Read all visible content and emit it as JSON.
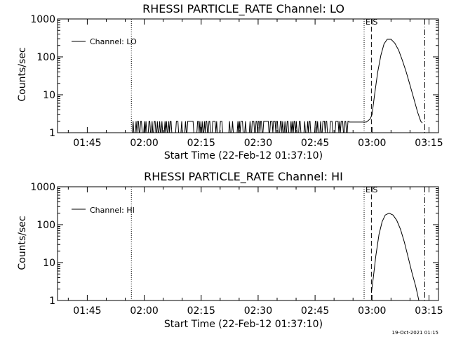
{
  "footer_stamp": "19-Oct-2021 01:15",
  "chart_data": [
    {
      "type": "line",
      "title": "RHESSI PARTICLE_RATE Channel: LO",
      "xlabel": "Start Time (22-Feb-12 01:37:10)",
      "ylabel": "Counts/sec",
      "ylog": true,
      "ylim": [
        1,
        1000
      ],
      "yticks": [
        {
          "v": 1,
          "label": "1"
        },
        {
          "v": 10,
          "label": "10"
        },
        {
          "v": 100,
          "label": "100"
        },
        {
          "v": 1000,
          "label": "1000"
        }
      ],
      "xlim": [
        "01:37:10",
        "03:17:30"
      ],
      "xticks": [
        {
          "t": "01:45",
          "label": "01:45"
        },
        {
          "t": "02:00",
          "label": "02:00"
        },
        {
          "t": "02:15",
          "label": "02:15"
        },
        {
          "t": "02:30",
          "label": "02:30"
        },
        {
          "t": "02:45",
          "label": "02:45"
        },
        {
          "t": "03:00",
          "label": "03:00"
        },
        {
          "t": "03:15",
          "label": "03:15"
        }
      ],
      "legend": {
        "label": "Channel: LO",
        "position": "top-left"
      },
      "markers": [
        {
          "t": "01:56:37",
          "style": "dotted",
          "label": ""
        },
        {
          "t": "02:57:55",
          "style": "dotted",
          "label": "E"
        },
        {
          "t": "02:59:50",
          "style": "dashed",
          "label": "S"
        },
        {
          "t": "03:13:53",
          "style": "dashdot",
          "label": ""
        }
      ],
      "series": [
        {
          "name": "Channel: LO",
          "noise": {
            "from": "01:56:40",
            "to": "02:54:00",
            "low": 1,
            "high": 2
          },
          "points": [
            [
              "02:54:00",
              1.9
            ],
            [
              "02:58:30",
              1.9
            ],
            [
              "02:59:30",
              2.3
            ],
            [
              "03:00:00",
              3
            ],
            [
              "03:00:40",
              10
            ],
            [
              "03:01:30",
              40
            ],
            [
              "03:02:20",
              110
            ],
            [
              "03:03:10",
              220
            ],
            [
              "03:04:00",
              290
            ],
            [
              "03:05:00",
              290
            ],
            [
              "03:06:00",
              230
            ],
            [
              "03:07:00",
              150
            ],
            [
              "03:08:00",
              80
            ],
            [
              "03:09:00",
              40
            ],
            [
              "03:10:00",
              18
            ],
            [
              "03:11:00",
              8
            ],
            [
              "03:12:00",
              3.5
            ],
            [
              "03:12:50",
              2
            ],
            [
              "03:13:15",
              1.8
            ]
          ]
        }
      ]
    },
    {
      "type": "line",
      "title": "RHESSI PARTICLE_RATE Channel: HI",
      "xlabel": "Start Time (22-Feb-12 01:37:10)",
      "ylabel": "Counts/sec",
      "ylog": true,
      "ylim": [
        1,
        1000
      ],
      "yticks": [
        {
          "v": 1,
          "label": "1"
        },
        {
          "v": 10,
          "label": "10"
        },
        {
          "v": 100,
          "label": "100"
        },
        {
          "v": 1000,
          "label": "1000"
        }
      ],
      "xlim": [
        "01:37:10",
        "03:17:30"
      ],
      "xticks": [
        {
          "t": "01:45",
          "label": "01:45"
        },
        {
          "t": "02:00",
          "label": "02:00"
        },
        {
          "t": "02:15",
          "label": "02:15"
        },
        {
          "t": "02:30",
          "label": "02:30"
        },
        {
          "t": "02:45",
          "label": "02:45"
        },
        {
          "t": "03:00",
          "label": "03:00"
        },
        {
          "t": "03:15",
          "label": "03:15"
        }
      ],
      "legend": {
        "label": "Channel: HI",
        "position": "top-left"
      },
      "markers": [
        {
          "t": "01:56:37",
          "style": "dotted",
          "label": ""
        },
        {
          "t": "02:57:55",
          "style": "dotted",
          "label": "E"
        },
        {
          "t": "02:59:50",
          "style": "dashed",
          "label": "S"
        },
        {
          "t": "03:13:53",
          "style": "dashdot",
          "label": ""
        }
      ],
      "series": [
        {
          "name": "Channel: HI",
          "points": [
            [
              "02:59:50",
              1.6
            ],
            [
              "03:00:20",
              4
            ],
            [
              "03:01:00",
              15
            ],
            [
              "03:01:50",
              55
            ],
            [
              "03:02:40",
              120
            ],
            [
              "03:03:30",
              180
            ],
            [
              "03:04:30",
              200
            ],
            [
              "03:05:30",
              180
            ],
            [
              "03:06:30",
              130
            ],
            [
              "03:07:30",
              75
            ],
            [
              "03:08:30",
              35
            ],
            [
              "03:09:30",
              14
            ],
            [
              "03:10:30",
              5.5
            ],
            [
              "03:11:30",
              2.4
            ],
            [
              "03:12:10",
              1.2
            ],
            [
              "03:12:20",
              1
            ]
          ]
        }
      ]
    }
  ]
}
